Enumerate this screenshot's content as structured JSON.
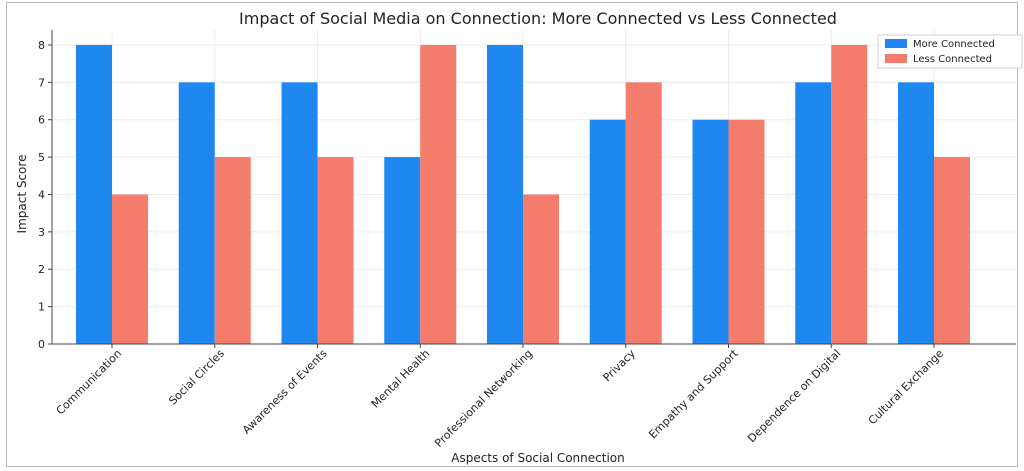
{
  "chart_data": {
    "type": "bar",
    "title": "Impact of Social Media on Connection: More Connected vs Less Connected",
    "xlabel": "Aspects of Social Connection",
    "ylabel": "Impact Score",
    "categories": [
      "Communication",
      "Social Circles",
      "Awareness of Events",
      "Mental Health",
      "Professional Networking",
      "Privacy",
      "Empathy and Support",
      "Dependence on Digital",
      "Cultural Exchange"
    ],
    "series": [
      {
        "name": "More Connected",
        "color": "#1e88f0",
        "values": [
          8,
          7,
          7,
          5,
          8,
          6,
          6,
          7,
          7
        ]
      },
      {
        "name": "Less Connected",
        "color": "#f47c6c",
        "values": [
          4,
          5,
          5,
          8,
          4,
          7,
          6,
          8,
          5
        ]
      }
    ],
    "ylim": [
      0,
      8.4
    ],
    "yticks": [
      "0",
      "1",
      "2",
      "3",
      "4",
      "5",
      "6",
      "7",
      "8"
    ],
    "grid": true,
    "legend_position": "top-right"
  }
}
